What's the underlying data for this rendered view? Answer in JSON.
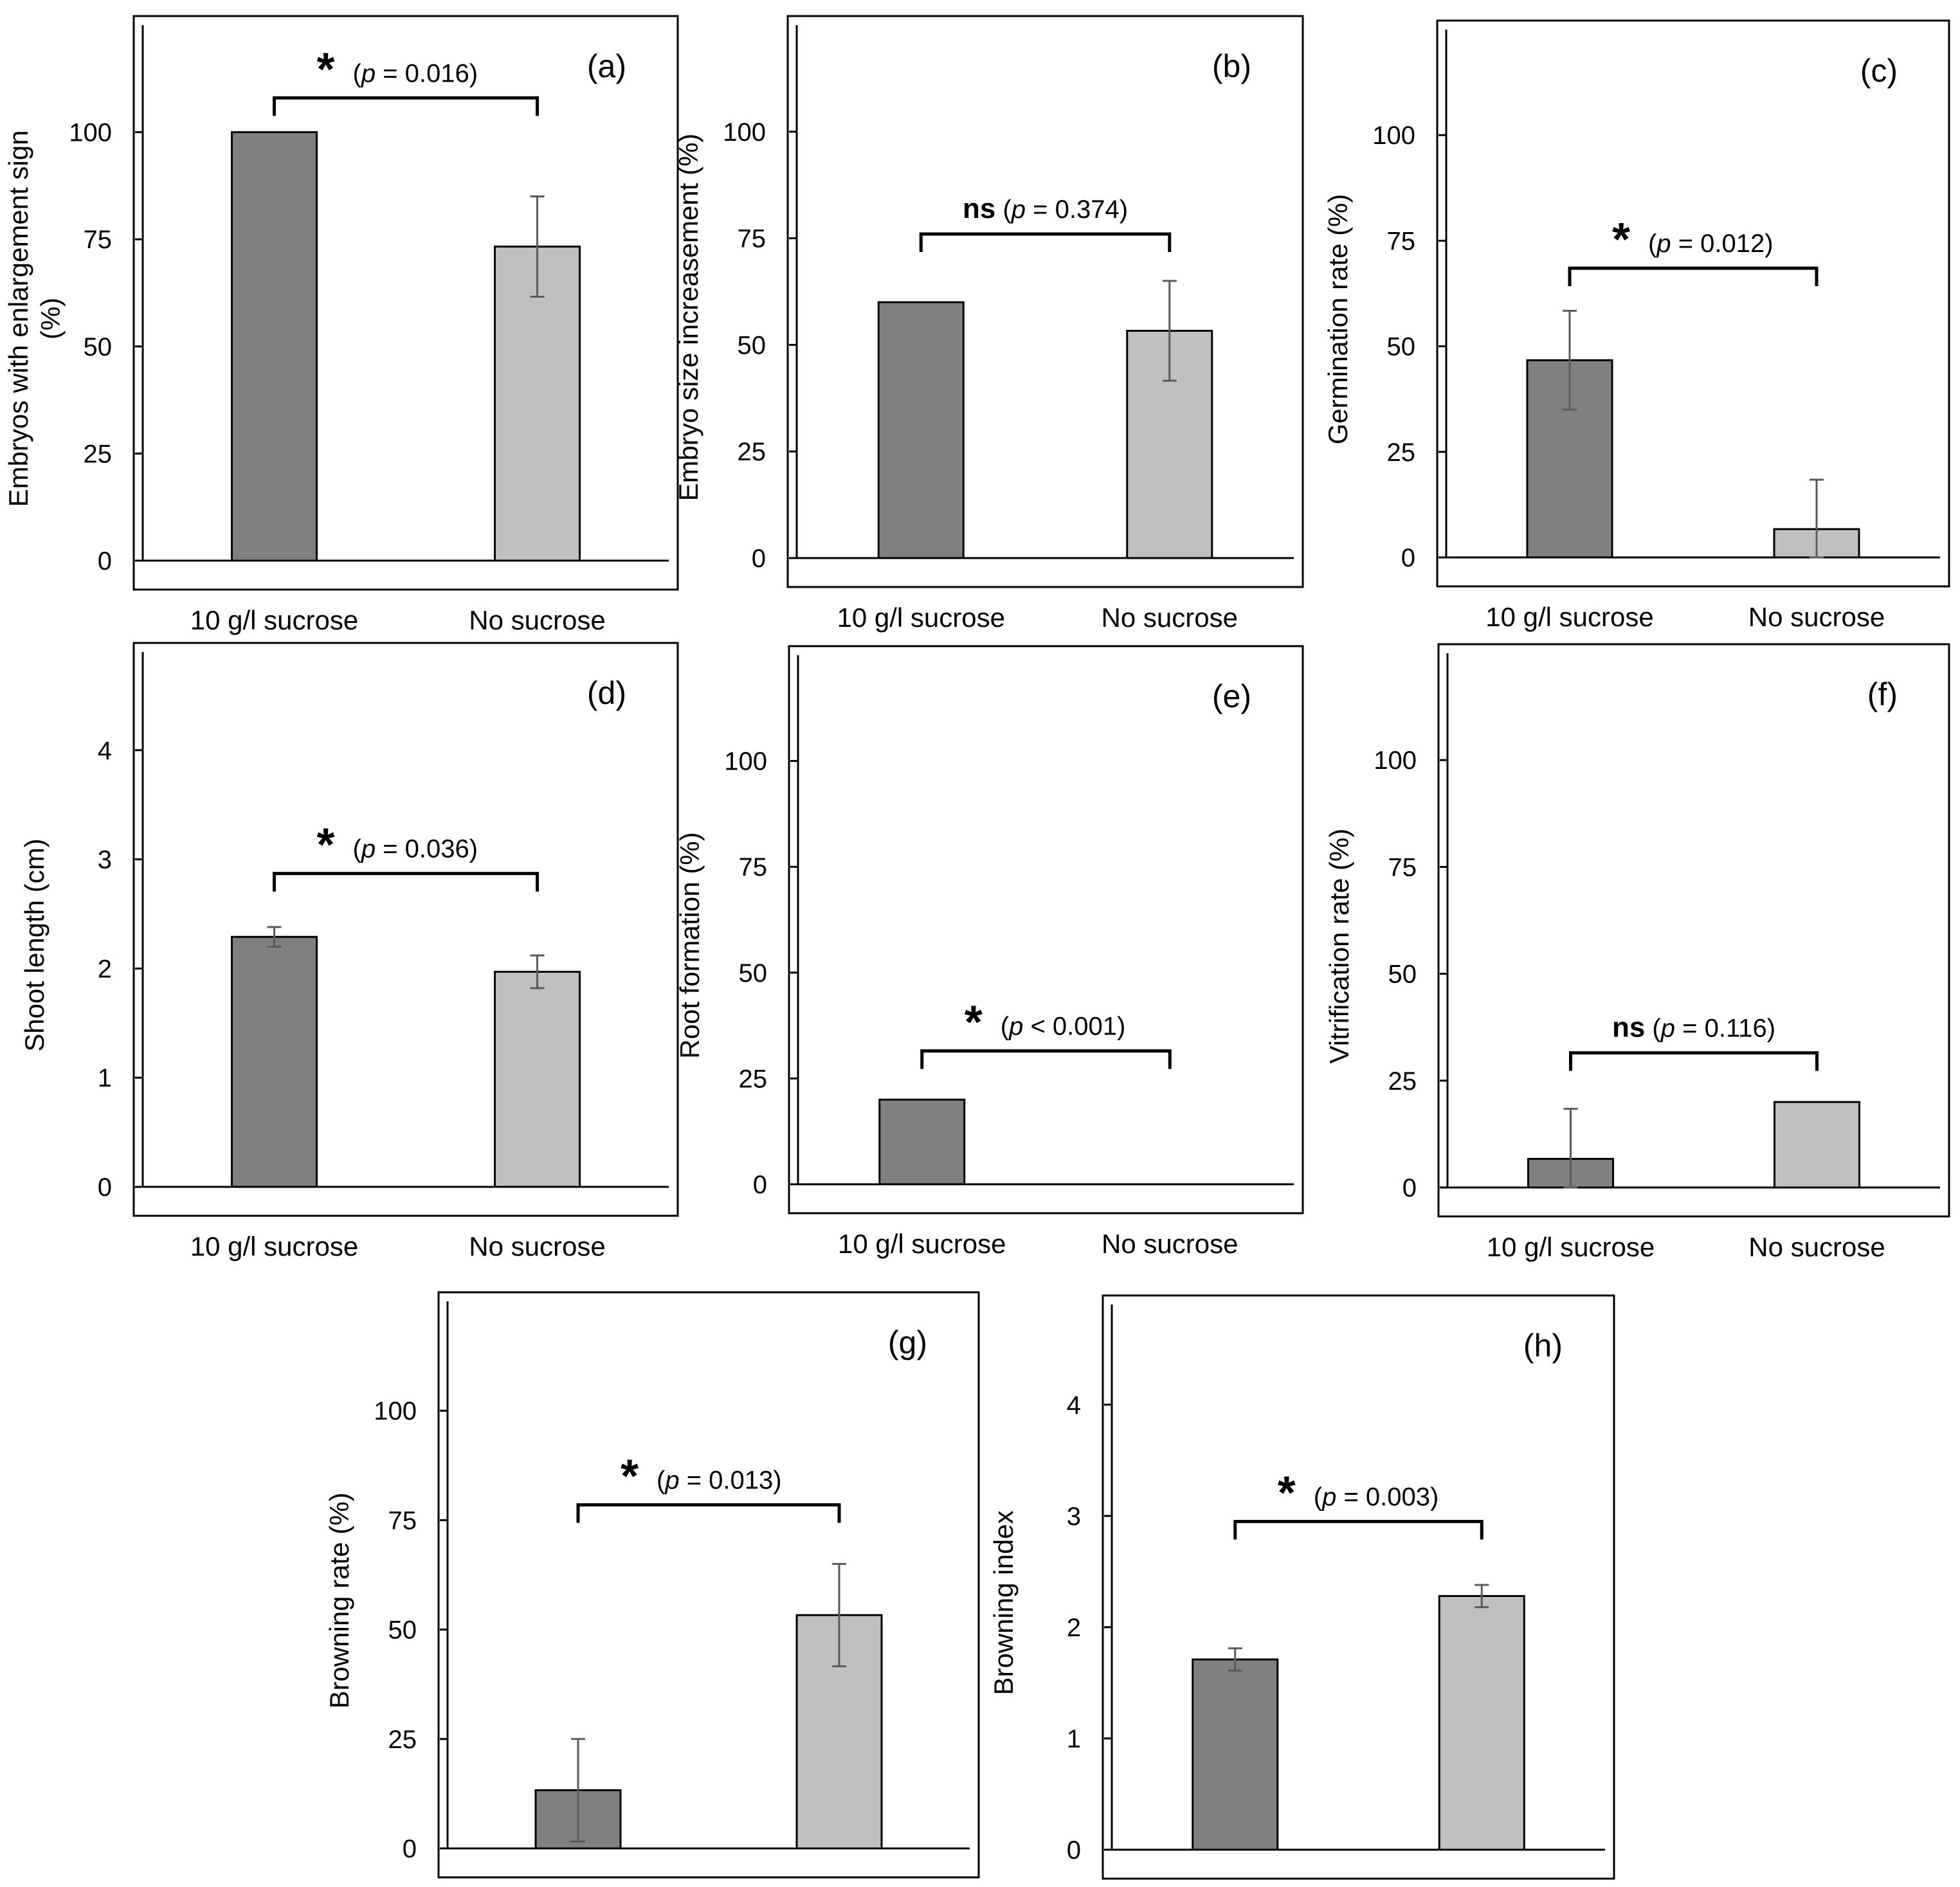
{
  "figure": {
    "categories": [
      "10 g/l sucrose",
      "No sucrose"
    ],
    "bar_colors": [
      "#808080",
      "#c0c0c0"
    ],
    "frame_color": "#000000",
    "error_color": "#5a5a5a"
  },
  "chart_data": [
    {
      "type": "bar",
      "panel": "(a)",
      "ylabel": [
        "Embryos with enlargement sign",
        "(%)"
      ],
      "ylim": [
        0,
        125
      ],
      "yticks": [
        0,
        25,
        50,
        75,
        100
      ],
      "values": [
        100,
        73.3
      ],
      "errors": [
        0,
        11.7
      ],
      "sig_marker": "*",
      "p_prefix": "(",
      "p_symbol": "p",
      "p_rest": " = 0.016)",
      "bracket_y": 108
    },
    {
      "type": "bar",
      "panel": "(b)",
      "ylabel": [
        "Embryo size increasement (%)"
      ],
      "ylim": [
        0,
        125
      ],
      "yticks": [
        0,
        25,
        50,
        75,
        100
      ],
      "values": [
        60,
        53.3
      ],
      "errors": [
        0,
        11.7
      ],
      "sig_marker": "ns",
      "p_prefix": " (",
      "p_symbol": "p",
      "p_rest": " = 0.374)",
      "bracket_y": 76
    },
    {
      "type": "bar",
      "panel": "(c)",
      "ylabel": [
        "Germination rate (%)"
      ],
      "ylim": [
        0,
        125
      ],
      "yticks": [
        0,
        25,
        50,
        75,
        100
      ],
      "values": [
        46.7,
        6.7
      ],
      "errors": [
        11.7,
        11.7
      ],
      "sig_marker": "*",
      "p_prefix": "(",
      "p_symbol": "p",
      "p_rest": " = 0.012)",
      "bracket_y": 68.5
    },
    {
      "type": "bar",
      "panel": "(d)",
      "ylabel": [
        "Shoot length (cm)"
      ],
      "ylim": [
        0,
        4.9
      ],
      "yticks": [
        0,
        1,
        2,
        3,
        4
      ],
      "values": [
        2.29,
        1.97
      ],
      "errors": [
        0.09,
        0.15
      ],
      "sig_marker": "*",
      "p_prefix": "(",
      "p_symbol": "p",
      "p_rest": " = 0.036)",
      "bracket_y": 2.87
    },
    {
      "type": "bar",
      "panel": "(e)",
      "ylabel": [
        "Root formation (%)"
      ],
      "ylim": [
        0,
        125
      ],
      "yticks": [
        0,
        25,
        50,
        75,
        100
      ],
      "values": [
        20,
        0
      ],
      "errors": [
        0,
        0
      ],
      "sig_marker": "*",
      "p_prefix": "(",
      "p_symbol": "p",
      "p_rest": " < 0.001)",
      "bracket_y": 31.5
    },
    {
      "type": "bar",
      "panel": "(f)",
      "ylabel": [
        "Vitrification rate (%)"
      ],
      "ylim": [
        0,
        125
      ],
      "yticks": [
        0,
        25,
        50,
        75,
        100
      ],
      "values": [
        6.7,
        20
      ],
      "errors": [
        11.7,
        0
      ],
      "sig_marker": "ns",
      "p_prefix": " (",
      "p_symbol": "p",
      "p_rest": " = 0.116)",
      "bracket_y": 31.5
    },
    {
      "type": "bar",
      "panel": "(g)",
      "ylabel": [
        "Browning rate (%)"
      ],
      "ylim": [
        0,
        125
      ],
      "yticks": [
        0,
        25,
        50,
        75,
        100
      ],
      "values": [
        13.3,
        53.3
      ],
      "errors": [
        11.7,
        11.7
      ],
      "sig_marker": "*",
      "p_prefix": "(",
      "p_symbol": "p",
      "p_rest": " = 0.013)",
      "bracket_y": 78.5
    },
    {
      "type": "bar",
      "panel": "(h)",
      "ylabel": [
        "Browning index"
      ],
      "ylim": [
        0,
        4.9
      ],
      "yticks": [
        0,
        1,
        2,
        3,
        4
      ],
      "values": [
        1.71,
        2.28
      ],
      "errors": [
        0.1,
        0.1
      ],
      "sig_marker": "*",
      "p_prefix": "(",
      "p_symbol": "p",
      "p_rest": " =  0.003)",
      "bracket_y": 2.95
    }
  ]
}
